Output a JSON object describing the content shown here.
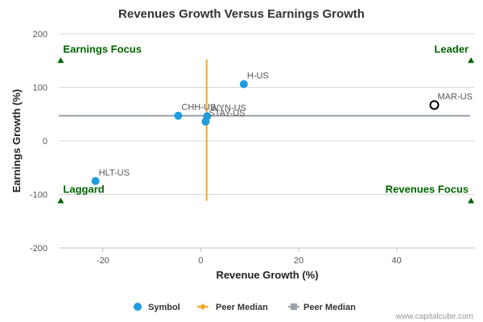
{
  "chart_data": {
    "type": "scatter",
    "title": "Revenues Growth Versus Earnings Growth",
    "xlabel": "Revenue Growth (%)",
    "ylabel": "Earnings Growth (%)",
    "xlim": [
      -29,
      56
    ],
    "ylim": [
      -200,
      200
    ],
    "xticks": [
      -20,
      0,
      20,
      40
    ],
    "yticks": [
      -200,
      -100,
      0,
      100,
      200
    ],
    "grid": "horizontal",
    "colors": {
      "symbol": "#1f9be0",
      "peer_median_vertical": "#f5a623",
      "peer_median_horizontal": "#9aa0aa",
      "highlight": "#000000",
      "quadrant_text": "#006400",
      "grid": "#d9d9d9"
    },
    "points": [
      {
        "label": "H-US",
        "x": 8.8,
        "y": 106
      },
      {
        "label": "CHH-US",
        "x": -4.6,
        "y": 47
      },
      {
        "label": "WYN-US",
        "x": 1.3,
        "y": 46
      },
      {
        "label": "STAY-US",
        "x": 1.0,
        "y": 36
      },
      {
        "label": "HLT-US",
        "x": -21.5,
        "y": -75
      }
    ],
    "highlight_point": {
      "label": "MAR-US",
      "x": 47.7,
      "y": 67
    },
    "peer_median_vertical": {
      "x": 1.2,
      "y_range": [
        -112,
        152
      ]
    },
    "peer_median_horizontal": {
      "y": 47,
      "x_range": [
        -29,
        55
      ]
    },
    "quadrants": [
      {
        "label": "Earnings Focus",
        "x": -28.6,
        "y": 150
      },
      {
        "label": "Leader",
        "x": 55.2,
        "y": 150
      },
      {
        "label": "Laggard",
        "x": -28.6,
        "y": -112
      },
      {
        "label": "Revenues Focus",
        "x": 55.2,
        "y": -112
      }
    ],
    "legend": {
      "placement": "bottom-center",
      "items": [
        {
          "name": "Symbol",
          "marker": "circle",
          "color": "#1f9be0"
        },
        {
          "name": "Peer Median",
          "marker": "diamond",
          "color": "#f5a623"
        },
        {
          "name": "Peer Median",
          "marker": "square",
          "color": "#9aa0aa"
        }
      ]
    },
    "credit": "www.capitalcube.com"
  }
}
